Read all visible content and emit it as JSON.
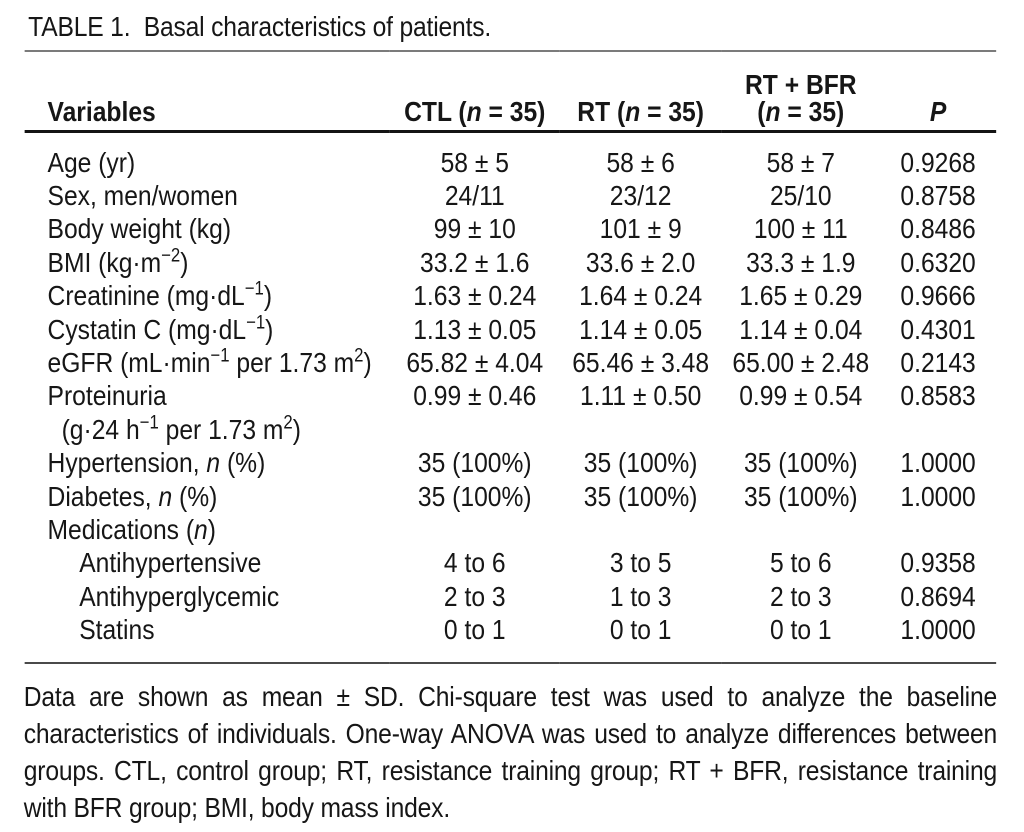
{
  "title": "TABLE 1.  Basal characteristics of patients.",
  "colors": {
    "text": "#161616",
    "rule_light": "#7b7b7b",
    "rule_dark": "#141414"
  },
  "table": {
    "header": {
      "variables": [
        {
          "t": "Variables"
        }
      ],
      "ctl": [
        {
          "t": "CTL ("
        },
        {
          "t": "n",
          "i": true
        },
        {
          "t": " = 35)"
        }
      ],
      "rt": [
        {
          "t": "RT ("
        },
        {
          "t": "n",
          "i": true
        },
        {
          "t": " = 35)"
        }
      ],
      "rt_bfr_line1": [
        {
          "t": "RT + BFR"
        }
      ],
      "rt_bfr_line2": [
        {
          "t": "("
        },
        {
          "t": "n",
          "i": true
        },
        {
          "t": " = 35)"
        }
      ],
      "p": [
        {
          "t": "P",
          "i": true
        }
      ]
    },
    "rows": [
      {
        "label": [
          {
            "t": "Age (yr)"
          }
        ],
        "indent": 0,
        "values": [
          "58 ± 5",
          "58 ± 6",
          "58 ± 7",
          "0.9268"
        ]
      },
      {
        "label": [
          {
            "t": "Sex, men/women"
          }
        ],
        "indent": 0,
        "values": [
          "24/11",
          "23/12",
          "25/10",
          "0.8758"
        ]
      },
      {
        "label": [
          {
            "t": "Body weight (kg)"
          }
        ],
        "indent": 0,
        "values": [
          "99 ± 10",
          "101 ± 9",
          "100 ± 11",
          "0.8486"
        ]
      },
      {
        "label": [
          {
            "t": "BMI (kg·m"
          },
          {
            "t": "−2",
            "sup": true
          },
          {
            "t": ")"
          }
        ],
        "indent": 0,
        "values": [
          "33.2 ± 1.6",
          "33.6 ± 2.0",
          "33.3 ± 1.9",
          "0.6320"
        ]
      },
      {
        "label": [
          {
            "t": "Creatinine (mg·dL"
          },
          {
            "t": "−1",
            "sup": true
          },
          {
            "t": ")"
          }
        ],
        "indent": 0,
        "values": [
          "1.63 ± 0.24",
          "1.64 ± 0.24",
          "1.65 ± 0.29",
          "0.9666"
        ]
      },
      {
        "label": [
          {
            "t": "Cystatin C (mg·dL"
          },
          {
            "t": "−1",
            "sup": true
          },
          {
            "t": ")"
          }
        ],
        "indent": 0,
        "values": [
          "1.13 ± 0.05",
          "1.14 ± 0.05",
          "1.14 ± 0.04",
          "0.4301"
        ]
      },
      {
        "label": [
          {
            "t": "eGFR (mL·min"
          },
          {
            "t": "−1",
            "sup": true
          },
          {
            "t": " per 1.73 m"
          },
          {
            "t": "2",
            "sup": true
          },
          {
            "t": ")"
          }
        ],
        "indent": 0,
        "values": [
          "65.82 ± 4.04",
          "65.46 ± 3.48",
          "65.00 ± 2.48",
          "0.2143"
        ]
      },
      {
        "label": [
          {
            "t": "Proteinuria"
          }
        ],
        "label2": [
          {
            "t": "(g·24 h"
          },
          {
            "t": "−1",
            "sup": true
          },
          {
            "t": " per 1.73 m"
          },
          {
            "t": "2",
            "sup": true
          },
          {
            "t": ")"
          }
        ],
        "indent": 0,
        "values": [
          "0.99 ± 0.46",
          "1.11 ± 0.50",
          "0.99 ± 0.54",
          "0.8583"
        ]
      },
      {
        "label": [
          {
            "t": "Hypertension, "
          },
          {
            "t": "n",
            "i": true
          },
          {
            "t": " (%)"
          }
        ],
        "indent": 0,
        "values": [
          "35 (100%)",
          "35 (100%)",
          "35 (100%)",
          "1.0000"
        ]
      },
      {
        "label": [
          {
            "t": "Diabetes, "
          },
          {
            "t": "n",
            "i": true
          },
          {
            "t": " (%)"
          }
        ],
        "indent": 0,
        "values": [
          "35 (100%)",
          "35 (100%)",
          "35 (100%)",
          "1.0000"
        ]
      },
      {
        "label": [
          {
            "t": "Medications ("
          },
          {
            "t": "n",
            "i": true
          },
          {
            "t": ")"
          }
        ],
        "indent": 0,
        "values": [
          "",
          "",
          "",
          ""
        ]
      },
      {
        "label": [
          {
            "t": "Antihypertensive"
          }
        ],
        "indent": 1,
        "values": [
          "4 to 6",
          "3 to 5",
          "5 to 6",
          "0.9358"
        ]
      },
      {
        "label": [
          {
            "t": "Antihyperglycemic"
          }
        ],
        "indent": 1,
        "values": [
          "2 to 3",
          "1 to 3",
          "2 to 3",
          "0.8694"
        ]
      },
      {
        "label": [
          {
            "t": "Statins"
          }
        ],
        "indent": 1,
        "values": [
          "0 to 1",
          "0 to 1",
          "0 to 1",
          "1.0000"
        ]
      }
    ]
  },
  "footnote": "Data are shown as mean ± SD. Chi-square test was used to analyze the baseline characteristics of individuals. One-way ANOVA was used to analyze differences between groups. CTL, control group; RT, resistance training group; RT + BFR, resistance training with BFR group; BMI, body mass index."
}
